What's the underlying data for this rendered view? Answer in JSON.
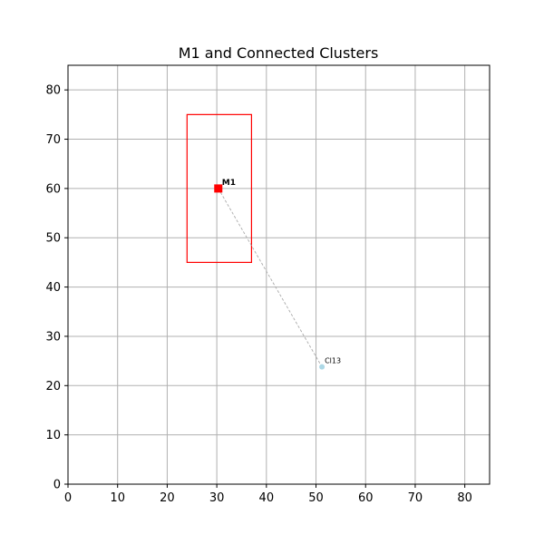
{
  "chart_data": {
    "type": "scatter",
    "title": "M1 and Connected Clusters",
    "xlabel": "",
    "ylabel": "",
    "xlim": [
      0,
      85
    ],
    "ylim": [
      0,
      85
    ],
    "xticks": [
      0,
      10,
      20,
      30,
      40,
      50,
      60,
      70,
      80
    ],
    "yticks": [
      0,
      10,
      20,
      30,
      40,
      50,
      60,
      70,
      80
    ],
    "grid": true,
    "points": [
      {
        "label": "M1",
        "x": 30.3,
        "y": 60.0,
        "marker": "square",
        "color": "#ff0000"
      },
      {
        "label": "Cl13",
        "x": 51.2,
        "y": 23.8,
        "marker": "circle",
        "color": "#add8e6"
      }
    ],
    "rectangles": [
      {
        "x0": 24.0,
        "x1": 37.0,
        "y0": 45.0,
        "y1": 75.0,
        "color": "#ff0000"
      }
    ],
    "connections": [
      {
        "from": "M1",
        "to": "Cl13",
        "style": "dashed",
        "color": "#aaaaaa"
      }
    ]
  }
}
